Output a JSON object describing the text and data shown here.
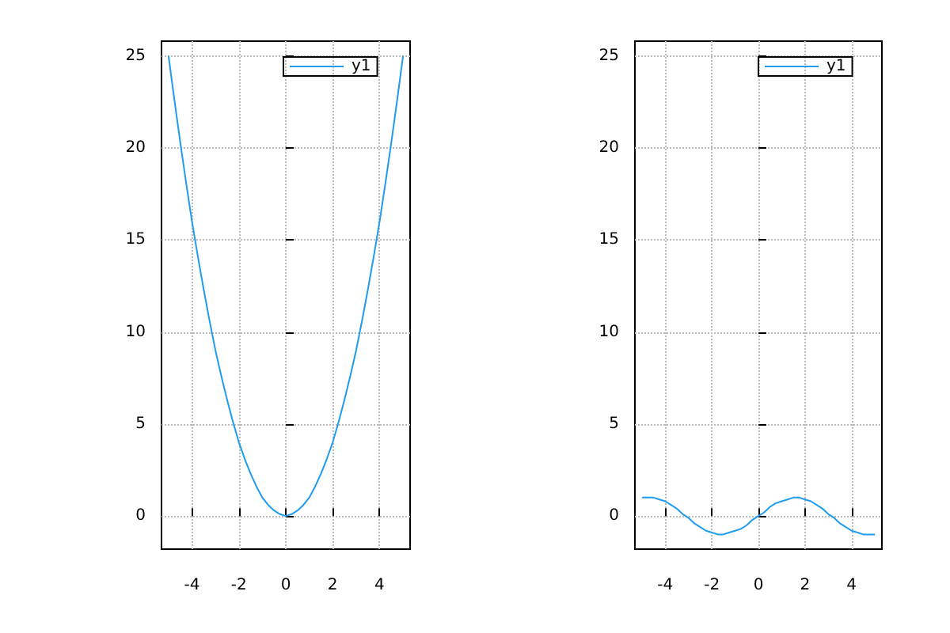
{
  "chart_data": [
    {
      "type": "line",
      "x": [
        -5,
        -4.75,
        -4.5,
        -4.25,
        -4,
        -3.75,
        -3.5,
        -3.25,
        -3,
        -2.75,
        -2.5,
        -2.25,
        -2,
        -1.75,
        -1.5,
        -1.25,
        -1,
        -0.75,
        -0.5,
        -0.25,
        0,
        0.25,
        0.5,
        0.75,
        1,
        1.25,
        1.5,
        1.75,
        2,
        2.25,
        2.5,
        2.75,
        3,
        3.25,
        3.5,
        3.75,
        4,
        4.25,
        4.5,
        4.75,
        5
      ],
      "series": [
        {
          "name": "y1",
          "color": "#1f9bf0",
          "values": [
            25,
            22.6,
            20.3,
            18.1,
            16,
            14.1,
            12.3,
            10.6,
            9,
            7.6,
            6.3,
            5.1,
            4,
            3.1,
            2.3,
            1.6,
            1,
            0.6,
            0.3,
            0.1,
            0,
            0.1,
            0.3,
            0.6,
            1,
            1.6,
            2.3,
            3.1,
            4,
            5.1,
            6.3,
            7.6,
            9,
            10.6,
            12.3,
            14.1,
            16,
            18.1,
            20.3,
            22.6,
            25
          ]
        }
      ],
      "xlim": [
        -5.3,
        5.3
      ],
      "ylim": [
        -1.8,
        25.8
      ],
      "xticks": [
        -4,
        -2,
        0,
        2,
        4
      ],
      "yticks": [
        0,
        5,
        10,
        15,
        20,
        25
      ],
      "grid": true,
      "legend": "top right",
      "marker": "none",
      "line_style": "solid"
    },
    {
      "type": "line",
      "x": [
        -5,
        -4.75,
        -4.5,
        -4.25,
        -4,
        -3.75,
        -3.5,
        -3.25,
        -3,
        -2.75,
        -2.5,
        -2.25,
        -2,
        -1.75,
        -1.5,
        -1.25,
        -1,
        -0.75,
        -0.5,
        -0.25,
        0,
        0.25,
        0.5,
        0.75,
        1,
        1.25,
        1.5,
        1.75,
        2,
        2.25,
        2.5,
        2.75,
        3,
        3.25,
        3.5,
        3.75,
        4,
        4.25,
        4.5,
        4.75,
        5
      ],
      "series": [
        {
          "name": "y1",
          "color": "#1f9bf0",
          "values": [
            1,
            1,
            1,
            0.9,
            0.8,
            0.6,
            0.4,
            0.1,
            -0.1,
            -0.4,
            -0.6,
            -0.8,
            -0.9,
            -1,
            -1,
            -0.9,
            -0.8,
            -0.7,
            -0.5,
            -0.2,
            0,
            0.2,
            0.5,
            0.7,
            0.8,
            0.9,
            1,
            1,
            0.9,
            0.8,
            0.6,
            0.4,
            0.1,
            -0.1,
            -0.4,
            -0.6,
            -0.8,
            -0.9,
            -1,
            -1,
            -1
          ]
        }
      ],
      "xlim": [
        -5.3,
        5.3
      ],
      "ylim": [
        -1.8,
        25.8
      ],
      "xticks": [
        -4,
        -2,
        0,
        2,
        4
      ],
      "yticks": [
        0,
        5,
        10,
        15,
        20,
        25
      ],
      "grid": true,
      "legend": "top right",
      "marker": "none",
      "line_style": "solid"
    }
  ]
}
